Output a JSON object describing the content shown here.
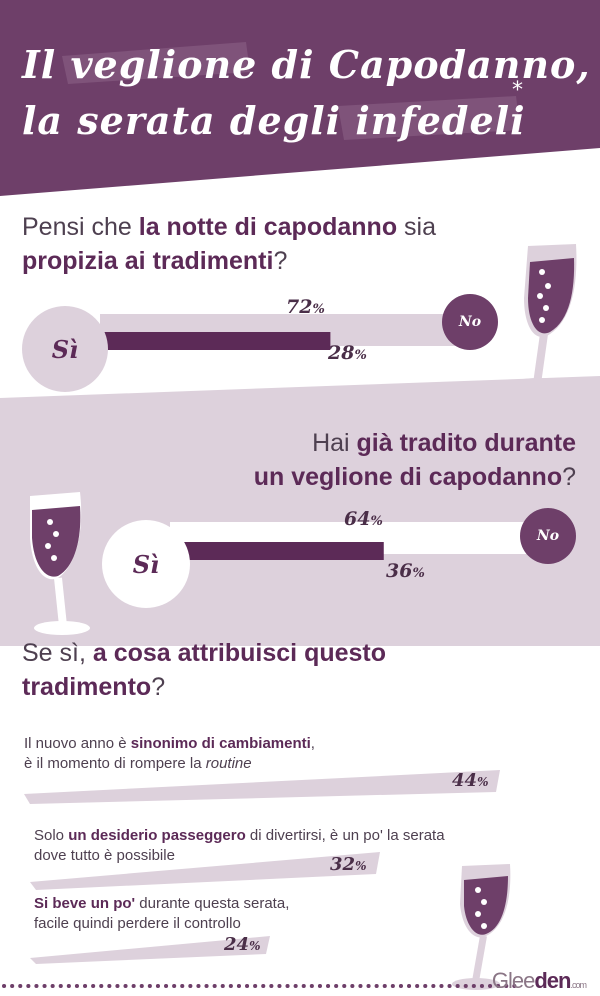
{
  "colors": {
    "plum": "#6e3f69",
    "dark_plum": "#5c2a57",
    "light_mauve": "#ddd1dc",
    "mid_mauve": "#cfc0cd",
    "white": "#ffffff"
  },
  "header": {
    "title_line1": "Il veglione di Capodanno,",
    "title_line2": "la serata degli infedeli",
    "asterisk": "*"
  },
  "q1": {
    "pre": "Pensi che ",
    "bold1": "la notte di capodanno",
    "mid": " sia",
    "bold2": "propizia ai tradimenti",
    "post": "?",
    "yes_label": "Sì",
    "no_label": "No",
    "yes_pct": "72",
    "no_pct": "28",
    "unit": "%",
    "yes_value": 72
  },
  "q2": {
    "pre": "Hai ",
    "bold1": "già tradito durante",
    "bold2": "un veglione di capodanno",
    "post": "?",
    "yes_label": "Sì",
    "no_label": "No",
    "yes_pct": "64",
    "no_pct": "36",
    "unit": "%",
    "yes_value": 64
  },
  "q3": {
    "pre": "Se sì, ",
    "bold1": "a cosa attribuisci questo",
    "bold2": "tradimento",
    "post": "?"
  },
  "reasons": [
    {
      "t1": "Il nuovo anno è ",
      "b1": "sinonimo di cambiamenti",
      "t2": ",",
      "t3": "è il momento di rompere la ",
      "i1": "routine",
      "pct": "44",
      "unit": "%",
      "value": 44
    },
    {
      "t1": "Solo ",
      "b1": "un desiderio passeggero",
      "t2": " di divertirsi, è un po' la serata",
      "t3": "dove tutto è possibile",
      "i1": "",
      "pct": "32",
      "unit": "%",
      "value": 32
    },
    {
      "t1": "",
      "b1": "Si beve un po'",
      "t2": " durante questa serata,",
      "t3": "facile quindi perdere il controllo",
      "i1": "",
      "pct": "24",
      "unit": "%",
      "value": 24
    }
  ],
  "brand": {
    "part1": "Glee",
    "part2": "den",
    "suffix": ".com"
  }
}
